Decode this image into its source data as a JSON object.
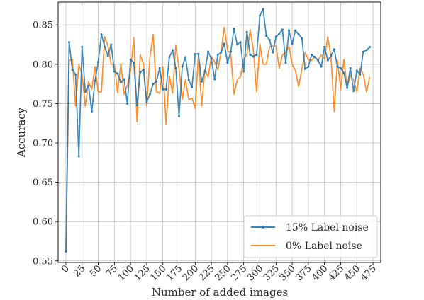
{
  "chart_data": {
    "type": "line",
    "title": "",
    "xlabel": "Number of added images",
    "ylabel": "Accuracy",
    "xlim": [
      -12,
      487
    ],
    "ylim": [
      0.548,
      0.879
    ],
    "xticks": [
      0,
      25,
      50,
      75,
      100,
      125,
      150,
      175,
      200,
      225,
      250,
      275,
      300,
      325,
      350,
      375,
      400,
      425,
      450,
      475
    ],
    "yticks": [
      0.55,
      0.6,
      0.65,
      0.7,
      0.75,
      0.8,
      0.85
    ],
    "ytick_labels": [
      "0.55",
      "0.60",
      "0.65",
      "0.70",
      "0.75",
      "0.80",
      "0.85"
    ],
    "grid": true,
    "legend_position": "lower-right",
    "colors": {
      "series_1": "#1f77b4",
      "series_2": "#ff7f0e"
    },
    "x": [
      0,
      5,
      10,
      15,
      20,
      25,
      30,
      35,
      40,
      45,
      50,
      55,
      60,
      65,
      70,
      75,
      80,
      85,
      90,
      95,
      100,
      105,
      110,
      115,
      120,
      125,
      130,
      135,
      140,
      145,
      150,
      155,
      160,
      165,
      170,
      175,
      180,
      185,
      190,
      195,
      200,
      205,
      210,
      215,
      220,
      225,
      230,
      235,
      240,
      245,
      250,
      255,
      260,
      265,
      270,
      275,
      280,
      285,
      290,
      295,
      300,
      305,
      310,
      315,
      320,
      325,
      330,
      335,
      340,
      345,
      350,
      355,
      360,
      365,
      370,
      375,
      380,
      385,
      390,
      395,
      400,
      405,
      410,
      415,
      420,
      425,
      430,
      435,
      440,
      445,
      450,
      455,
      460,
      465,
      470
    ],
    "series": [
      {
        "name": "15% Label noise",
        "values": [
          0.562,
          0.828,
          0.793,
          0.787,
          0.683,
          0.822,
          0.765,
          0.773,
          0.74,
          0.779,
          0.803,
          0.838,
          0.822,
          0.811,
          0.825,
          0.791,
          0.788,
          0.777,
          0.781,
          0.75,
          0.806,
          0.802,
          0.748,
          0.79,
          0.793,
          0.752,
          0.762,
          0.775,
          0.778,
          0.795,
          0.768,
          0.768,
          0.809,
          0.818,
          0.795,
          0.734,
          0.797,
          0.809,
          0.78,
          0.771,
          0.813,
          0.813,
          0.778,
          0.791,
          0.816,
          0.807,
          0.781,
          0.812,
          0.815,
          0.826,
          0.802,
          0.816,
          0.845,
          0.825,
          0.828,
          0.791,
          0.841,
          0.812,
          0.81,
          0.812,
          0.862,
          0.87,
          0.836,
          0.831,
          0.815,
          0.835,
          0.839,
          0.844,
          0.802,
          0.843,
          0.826,
          0.843,
          0.838,
          0.833,
          0.794,
          0.797,
          0.812,
          0.809,
          0.805,
          0.797,
          0.822,
          0.805,
          0.811,
          0.819,
          0.797,
          0.795,
          0.789,
          0.77,
          0.795,
          0.766,
          0.792,
          0.787,
          0.816,
          0.818,
          0.822
        ]
      },
      {
        "name": "0% Label noise",
        "values": [
          0.562,
          0.805,
          0.806,
          0.747,
          0.8,
          0.787,
          0.747,
          0.778,
          0.768,
          0.797,
          0.765,
          0.765,
          0.835,
          0.823,
          0.8,
          0.8,
          0.764,
          0.801,
          0.762,
          0.773,
          0.791,
          0.834,
          0.727,
          0.812,
          0.8,
          0.747,
          0.809,
          0.838,
          0.765,
          0.763,
          0.797,
          0.724,
          0.785,
          0.763,
          0.824,
          0.794,
          0.755,
          0.78,
          0.755,
          0.757,
          0.744,
          0.812,
          0.747,
          0.793,
          0.784,
          0.81,
          0.803,
          0.793,
          0.816,
          0.847,
          0.818,
          0.813,
          0.762,
          0.78,
          0.784,
          0.806,
          0.813,
          0.844,
          0.818,
          0.765,
          0.826,
          0.8,
          0.8,
          0.822,
          0.823,
          0.823,
          0.795,
          0.812,
          0.815,
          0.823,
          0.8,
          0.792,
          0.772,
          0.794,
          0.815,
          0.806,
          0.805,
          0.81,
          0.805,
          0.812,
          0.807,
          0.835,
          0.81,
          0.74,
          0.805,
          0.768,
          0.806,
          0.77,
          0.786,
          0.78,
          0.765,
          0.795,
          0.787,
          0.765,
          0.784
        ]
      }
    ]
  }
}
